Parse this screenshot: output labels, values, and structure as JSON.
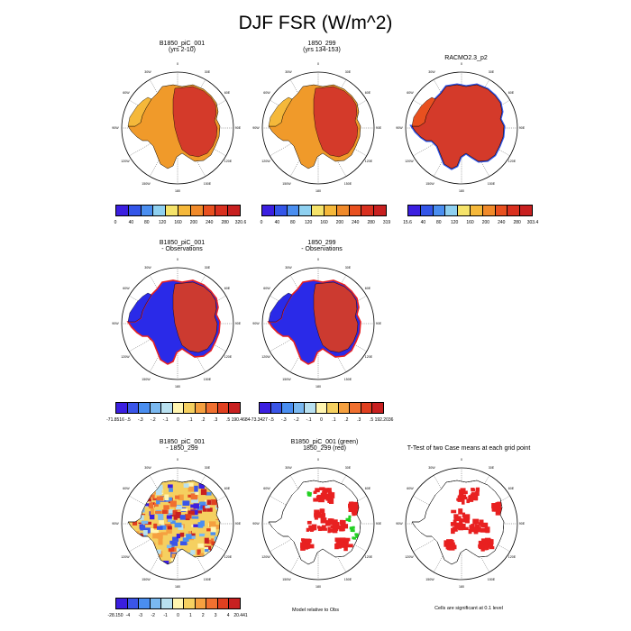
{
  "title": "DJF FSR (W/m^2)",
  "row1": {
    "p1": {
      "line1": "B1850_piC_001",
      "line2": "(yrs 2-10)",
      "cbar_labels": [
        "0",
        "40",
        "80",
        "120",
        "160",
        "200",
        "240",
        "280",
        "320.6"
      ]
    },
    "p2": {
      "line1": "1850_299",
      "line2": "(yrs 134-153)",
      "cbar_labels": [
        "0",
        "40",
        "80",
        "120",
        "160",
        "200",
        "240",
        "280",
        "319"
      ]
    },
    "p3": {
      "line1": "RACMO2.3_p2",
      "cbar_labels": [
        "15.6",
        "40",
        "80",
        "120",
        "160",
        "200",
        "240",
        "280",
        "303.4"
      ]
    }
  },
  "row2": {
    "p1": {
      "line1": "B1850_piC_001",
      "line2": "- Observations",
      "cbar_labels": [
        "-71.8516",
        "-.5",
        "-.3",
        "-.2",
        "-.1",
        "0",
        ".1",
        ".2",
        ".3",
        ".5",
        "190.4684"
      ]
    },
    "p2": {
      "line1": "1850_299",
      "line2": "- Observations",
      "cbar_labels": [
        "-73.3427",
        "-.5",
        "-.3",
        "-.2",
        "-.1",
        "0",
        ".1",
        ".2",
        ".3",
        ".5",
        "192.2036"
      ]
    }
  },
  "row3": {
    "p1": {
      "line1": "B1850_piC_001",
      "line2": "- 1850_299",
      "cbar_labels": [
        "-28.150",
        "-4",
        "-3",
        "-2",
        "-1",
        "0",
        "1",
        "2",
        "3",
        "4",
        "20.441"
      ]
    },
    "p2": {
      "line1": "B1850_piC_001 (green)",
      "line2": "1850_299 (red)",
      "caption": "Model relative to Obs"
    },
    "p3": {
      "line1": "T-Test of two Case means at each grid point",
      "caption": "Cells are significant at 0.1 level"
    }
  },
  "map_labels": {
    "top": "0",
    "ur": "30E",
    "rt": "60E",
    "east": "90E",
    "rb": "120E",
    "lr": "150E",
    "bottom": "180",
    "ll": "150W",
    "lb": "120W",
    "west": "90W",
    "lt": "60W",
    "ul": "30W"
  },
  "colors": {
    "abs_scale": [
      "#3b1fe0",
      "#3355e8",
      "#4a8ef0",
      "#8ed0f0",
      "#f5e36a",
      "#f5b83a",
      "#f08a2a",
      "#e8501f",
      "#d9301f",
      "#c82020"
    ],
    "diff_scale": [
      "#3b1fe0",
      "#3a55e8",
      "#4a8ef0",
      "#7ab8f0",
      "#b8e0f0",
      "#fff5b0",
      "#f5d060",
      "#f5a040",
      "#f07030",
      "#e04020",
      "#c82020"
    ],
    "bias_model": "#2a2ae8",
    "red": "#e82020",
    "green": "#22d022",
    "ice": "#d43a2a",
    "shelf": "#f09a2a"
  }
}
